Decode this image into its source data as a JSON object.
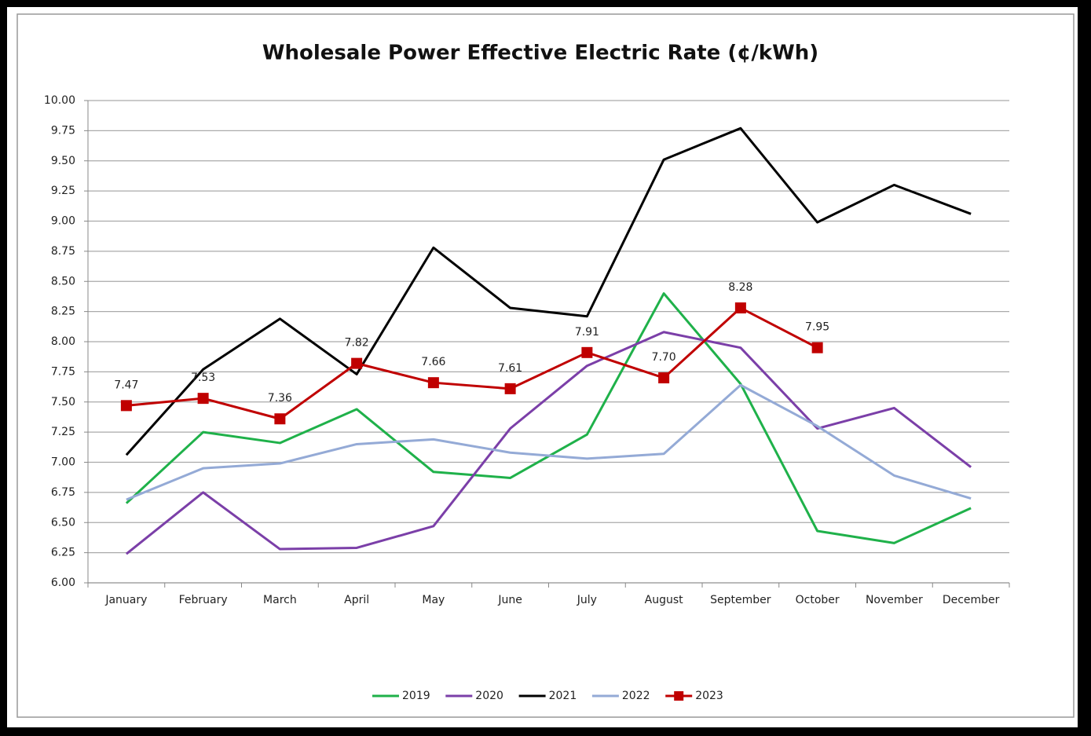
{
  "chart_data": {
    "type": "line",
    "title": "Wholesale Power Effective Electric Rate (¢/kWh)",
    "categories": [
      "January",
      "February",
      "March",
      "April",
      "May",
      "June",
      "July",
      "August",
      "September",
      "October",
      "November",
      "December"
    ],
    "series": [
      {
        "name": "2019",
        "color": "#1fb14a",
        "values": [
          6.66,
          7.25,
          7.16,
          7.44,
          6.92,
          6.87,
          7.23,
          8.4,
          7.65,
          6.43,
          6.33,
          6.62
        ]
      },
      {
        "name": "2020",
        "color": "#7b3fa8",
        "values": [
          6.24,
          6.75,
          6.28,
          6.29,
          6.47,
          7.28,
          7.8,
          8.08,
          7.95,
          7.28,
          7.45,
          6.96
        ]
      },
      {
        "name": "2021",
        "color": "#000000",
        "values": [
          7.06,
          7.77,
          8.19,
          7.73,
          8.78,
          8.28,
          8.21,
          9.51,
          9.77,
          8.99,
          9.3,
          9.06
        ]
      },
      {
        "name": "2022",
        "color": "#94aad6",
        "values": [
          6.69,
          6.95,
          6.99,
          7.15,
          7.19,
          7.08,
          7.03,
          7.07,
          7.64,
          7.3,
          6.89,
          6.7
        ]
      },
      {
        "name": "2023",
        "color": "#c00000",
        "marker": "square",
        "values": [
          7.47,
          7.53,
          7.36,
          7.82,
          7.66,
          7.61,
          7.91,
          7.7,
          8.28,
          7.95,
          null,
          null
        ],
        "value_labels": [
          "7.47",
          "7.53",
          "7.36",
          "7.82",
          "7.66",
          "7.61",
          "7.91",
          "7.70",
          "8.28",
          "7.95",
          null,
          null
        ]
      }
    ],
    "ylim": [
      6,
      10
    ],
    "yticks": [
      {
        "value": 6,
        "label": "6.00"
      },
      6.25,
      {
        "value": 6.5,
        "label": "6.50"
      },
      6.75,
      {
        "value": 7,
        "label": "7.00"
      },
      7.25,
      {
        "value": 7.5,
        "label": "7.50"
      },
      7.75,
      {
        "value": 8,
        "label": "8.00"
      },
      8.25,
      {
        "value": 8.5,
        "label": "8.50"
      },
      8.75,
      {
        "value": 9,
        "label": "9.00"
      },
      9.25,
      {
        "value": 9.5,
        "label": "9.50"
      },
      9.75,
      {
        "value": 10,
        "label": "10.00"
      }
    ],
    "grid": true,
    "legend": "bottom"
  }
}
